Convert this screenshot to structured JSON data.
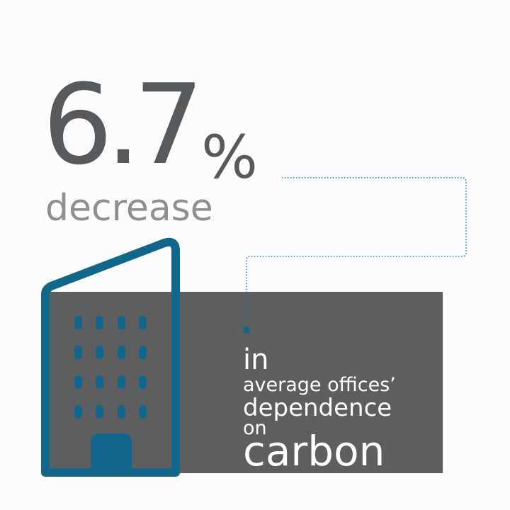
{
  "stat": {
    "value": "6.7",
    "unit": "%",
    "direction_label": "decrease"
  },
  "caption": {
    "line1": "in",
    "line2": "average offices’",
    "line3": "dependence",
    "line4": "on",
    "line5": "carbon"
  },
  "icons": {
    "building": "office-building-icon"
  },
  "colors": {
    "background": "#fcfcfc",
    "dark_gray": "#575a5d",
    "light_gray": "#8d8f92",
    "panel_gray": "#5c5e60",
    "accent_blue": "#11678b"
  },
  "building_windows": {
    "rows": 4,
    "columns": 4
  }
}
